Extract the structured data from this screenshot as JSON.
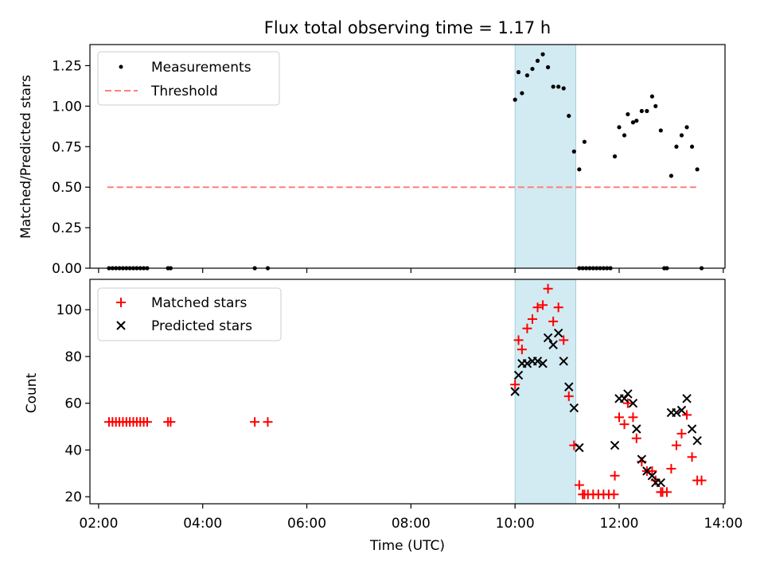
{
  "figure": {
    "title": "Flux total observing time = 1.17 h",
    "shaded_region": {
      "start": "10:00",
      "end": "11:10",
      "color": "#add8e6"
    }
  },
  "chart_data": [
    {
      "type": "scatter",
      "ylabel": "Matched/Predicted stars",
      "ylim": [
        0,
        1.38
      ],
      "yticks": [
        "0.00",
        "0.25",
        "0.50",
        "0.75",
        "1.00",
        "1.25"
      ],
      "xlim": [
        "01:50",
        "14:02"
      ],
      "grid": false,
      "legend_position": "top-left",
      "series": [
        {
          "name": "Measurements",
          "kind": "points",
          "color": "#000000",
          "x": [
            "02:12",
            "02:16",
            "02:20",
            "02:24",
            "02:28",
            "02:32",
            "02:36",
            "02:40",
            "02:44",
            "02:48",
            "02:52",
            "02:56",
            "03:20",
            "03:23",
            "05:00",
            "05:15",
            "10:00",
            "10:04",
            "10:08",
            "10:14",
            "10:20",
            "10:26",
            "10:32",
            "10:38",
            "10:44",
            "10:50",
            "10:56",
            "11:02",
            "11:08",
            "11:14",
            "11:20",
            "11:14",
            "11:18",
            "11:22",
            "11:26",
            "11:30",
            "11:34",
            "11:38",
            "11:42",
            "11:46",
            "11:50",
            "11:55",
            "12:00",
            "12:06",
            "12:10",
            "12:16",
            "12:20",
            "12:26",
            "12:32",
            "12:38",
            "12:42",
            "12:48",
            "12:52",
            "12:55",
            "13:00",
            "13:06",
            "13:12",
            "13:18",
            "13:24",
            "13:30",
            "13:35"
          ],
          "y": [
            0,
            0,
            0,
            0,
            0,
            0,
            0,
            0,
            0,
            0,
            0,
            0,
            0,
            0,
            0,
            0,
            1.04,
            1.21,
            1.08,
            1.19,
            1.23,
            1.28,
            1.32,
            1.24,
            1.12,
            1.12,
            1.11,
            0.94,
            0.72,
            0.61,
            0.78,
            0,
            0,
            0,
            0,
            0,
            0,
            0,
            0,
            0,
            0,
            0.69,
            0.87,
            0.82,
            0.95,
            0.9,
            0.91,
            0.97,
            0.97,
            1.06,
            1.0,
            0.85,
            0,
            0,
            0.57,
            0.75,
            0.82,
            0.87,
            0.75,
            0.61,
            0
          ]
        },
        {
          "name": "Threshold",
          "kind": "line",
          "color": "#ff7f7f",
          "dashed": true,
          "x": [
            "02:10",
            "13:30"
          ],
          "y": [
            0.5,
            0.5
          ]
        }
      ]
    },
    {
      "type": "scatter",
      "ylabel": "Count",
      "xlabel": "Time (UTC)",
      "ylim": [
        17,
        113
      ],
      "yticks": [
        "20",
        "40",
        "60",
        "80",
        "100"
      ],
      "xlim": [
        "01:50",
        "14:02"
      ],
      "xticks": [
        "02:00",
        "04:00",
        "06:00",
        "08:00",
        "10:00",
        "12:00",
        "14:00"
      ],
      "grid": false,
      "legend_position": "top-left",
      "series": [
        {
          "name": "Matched stars",
          "marker": "+",
          "color": "#ff0000",
          "x": [
            "02:12",
            "02:16",
            "02:20",
            "02:24",
            "02:28",
            "02:32",
            "02:36",
            "02:40",
            "02:44",
            "02:48",
            "02:52",
            "02:56",
            "03:20",
            "03:23",
            "05:00",
            "05:15",
            "10:00",
            "10:04",
            "10:08",
            "10:14",
            "10:20",
            "10:26",
            "10:32",
            "10:38",
            "10:44",
            "10:50",
            "10:56",
            "11:02",
            "11:08",
            "11:14",
            "11:20",
            "11:18",
            "11:24",
            "11:30",
            "11:36",
            "11:42",
            "11:48",
            "11:54",
            "11:55",
            "12:00",
            "12:06",
            "12:10",
            "12:16",
            "12:20",
            "12:26",
            "12:32",
            "12:38",
            "12:42",
            "12:48",
            "12:50",
            "12:55",
            "13:00",
            "13:06",
            "13:12",
            "13:18",
            "13:24",
            "13:30",
            "13:35"
          ],
          "y": [
            52,
            52,
            52,
            52,
            52,
            52,
            52,
            52,
            52,
            52,
            52,
            52,
            52,
            52,
            52,
            52,
            68,
            87,
            83,
            92,
            96,
            101,
            102,
            109,
            95,
            101,
            87,
            63,
            42,
            25,
            21,
            21,
            21,
            21,
            21,
            21,
            21,
            21,
            29,
            54,
            51,
            60,
            54,
            45,
            35,
            31,
            31,
            27,
            22,
            22,
            22,
            32,
            42,
            47,
            55,
            37,
            27,
            27
          ]
        },
        {
          "name": "Predicted stars",
          "marker": "x",
          "color": "#000000",
          "x": [
            "10:00",
            "10:04",
            "10:08",
            "10:14",
            "10:20",
            "10:26",
            "10:32",
            "10:38",
            "10:44",
            "10:50",
            "10:56",
            "11:02",
            "11:08",
            "11:14",
            "11:55",
            "12:00",
            "12:06",
            "12:10",
            "12:16",
            "12:20",
            "12:26",
            "12:32",
            "12:38",
            "12:42",
            "12:48",
            "13:00",
            "13:06",
            "13:12",
            "13:18",
            "13:24",
            "13:30"
          ],
          "y": [
            65,
            72,
            77,
            77,
            78,
            78,
            77,
            88,
            85,
            90,
            78,
            67,
            58,
            41,
            42,
            62,
            62,
            64,
            60,
            49,
            36,
            31,
            29,
            26,
            26,
            56,
            56,
            57,
            62,
            49,
            44
          ]
        }
      ]
    }
  ]
}
